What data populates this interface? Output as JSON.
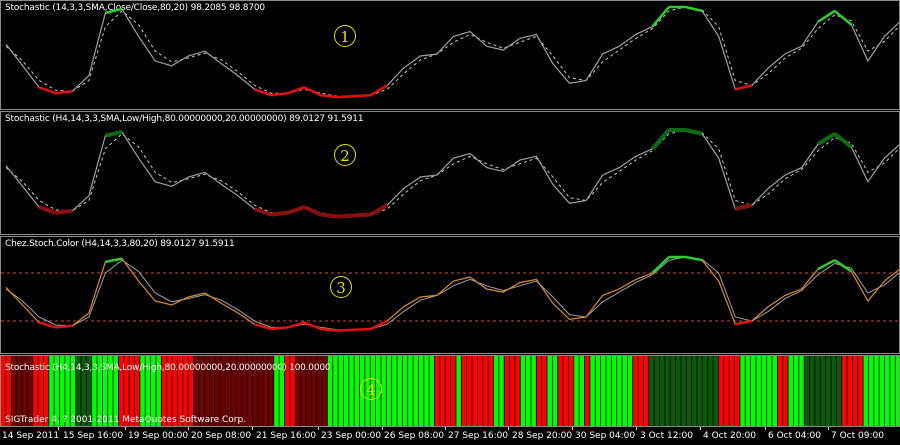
{
  "panes": [
    {
      "title": "Stochastic (14,3,3,SMA,Close/Close,80,20) 98.2085 98.8700",
      "marker": "1"
    },
    {
      "title": "Stochastic (H4,14,3,3,SMA,Low/High,80.00000000,20.00000000) 89.0127 91.5911",
      "marker": "2"
    },
    {
      "title": "Chez.Stoch.Color (H4,14,3,3,80,20) 89.0127 91.5911",
      "marker": "3"
    },
    {
      "title": "Stochastic (H4,14,3,3,SMA,Low/High,80.00000000,20.00000000) 100.0000",
      "marker": "4"
    }
  ],
  "copyright": "SIGTrader 4, ? 2001-2011 MetaQuotes Software Corp.",
  "time_axis": [
    "14 Sep 2011",
    "15 Sep 16:00",
    "19 Sep 00:00",
    "20 Sep 08:00",
    "21 Sep 16:00",
    "23 Sep 00:00",
    "26 Sep 08:00",
    "27 Sep 16:00",
    "28 Sep 20:00",
    "30 Sep 04:00",
    "3 Oct 12:00",
    "4 Oct 20:00",
    "6 Oct 04:00",
    "7 Oct 09:00"
  ],
  "colors": {
    "background": "#000000",
    "main_line": "#a0a0a0",
    "signal_line": "#c8c8c8",
    "overbought": "#2ecc2e",
    "oversold": "#e01010",
    "overbought_dark": "#0b6b12",
    "oversold_dark": "#8a1010",
    "color_stoch_main": "#e08a2a",
    "level_line": "#c0503a",
    "hist_bright_green": "#00ff00",
    "hist_red": "#ff0000",
    "hist_dark_red": "#6e0000",
    "hist_dark_green": "#0a5a0a",
    "marker": "#e8e000"
  },
  "chart_data": {
    "type": "line",
    "x": [
      "14 Sep 2011",
      "15 Sep 16:00",
      "19 Sep 00:00",
      "20 Sep 08:00",
      "21 Sep 16:00",
      "23 Sep 00:00",
      "26 Sep 08:00",
      "27 Sep 16:00",
      "28 Sep 20:00",
      "30 Sep 04:00",
      "3 Oct 12:00",
      "4 Oct 20:00",
      "6 Oct 04:00",
      "7 Oct 09:00"
    ],
    "levels": [
      80,
      20
    ],
    "ylim": [
      0,
      100
    ],
    "stoch_main": [
      62,
      40,
      18,
      12,
      14,
      30,
      94,
      98,
      70,
      45,
      40,
      50,
      55,
      42,
      30,
      16,
      10,
      12,
      18,
      10,
      8,
      9,
      10,
      20,
      38,
      50,
      52,
      70,
      75,
      60,
      56,
      68,
      72,
      42,
      22,
      25,
      52,
      60,
      72,
      80,
      100,
      100,
      96,
      70,
      16,
      20,
      38,
      52,
      60,
      85,
      96,
      82,
      45,
      70,
      86
    ],
    "stoch_signal": [
      60,
      45,
      25,
      15,
      14,
      25,
      80,
      96,
      82,
      55,
      44,
      48,
      53,
      46,
      34,
      20,
      12,
      12,
      16,
      12,
      9,
      9,
      10,
      16,
      32,
      46,
      52,
      64,
      72,
      64,
      58,
      64,
      70,
      50,
      28,
      25,
      44,
      56,
      68,
      78,
      96,
      100,
      97,
      80,
      25,
      20,
      32,
      48,
      58,
      78,
      92,
      86,
      55,
      65,
      82
    ],
    "histogram_states": [
      "R",
      "R",
      "dR",
      "dR",
      "dR",
      "dR",
      "R",
      "R",
      "R",
      "G",
      "G",
      "G",
      "G",
      "G",
      "dG",
      "dG",
      "dG",
      "G",
      "G",
      "G",
      "G",
      "G",
      "R",
      "R",
      "R",
      "R",
      "G",
      "G",
      "G",
      "G",
      "R",
      "R",
      "R",
      "R",
      "R",
      "R",
      "dR",
      "dR",
      "dR",
      "dR",
      "dR",
      "dR",
      "dR",
      "dR",
      "dR",
      "dR",
      "dR",
      "dR",
      "dR",
      "dR",
      "dR",
      "G",
      "G",
      "R",
      "R",
      "dR",
      "dR",
      "dR",
      "dR",
      "dR",
      "dR",
      "G",
      "G",
      "G",
      "G",
      "G",
      "G",
      "G",
      "G",
      "G",
      "G",
      "G",
      "G",
      "G",
      "G",
      "G",
      "G",
      "G",
      "G",
      "G",
      "G",
      "R",
      "R",
      "R",
      "R",
      "G",
      "R",
      "R",
      "R",
      "R",
      "R",
      "R",
      "G",
      "G",
      "R",
      "R",
      "R",
      "G",
      "G",
      "G",
      "R",
      "R",
      "G",
      "G",
      "R",
      "R",
      "R",
      "G",
      "G",
      "R",
      "G",
      "G",
      "G",
      "G",
      "G",
      "G",
      "G",
      "G",
      "R",
      "R",
      "R",
      "dG",
      "dG",
      "dG",
      "dG",
      "dG",
      "dG",
      "dG",
      "dG",
      "dG",
      "dG",
      "dG",
      "dG",
      "dG",
      "R",
      "R",
      "R",
      "R",
      "G",
      "G",
      "G",
      "G",
      "G",
      "G",
      "G",
      "R",
      "R",
      "G",
      "G",
      "G",
      "dG",
      "dG",
      "dG",
      "dG",
      "dG",
      "dG",
      "dG",
      "R",
      "R",
      "R",
      "R",
      "G",
      "G",
      "G",
      "G",
      "G",
      "G",
      "G"
    ]
  }
}
